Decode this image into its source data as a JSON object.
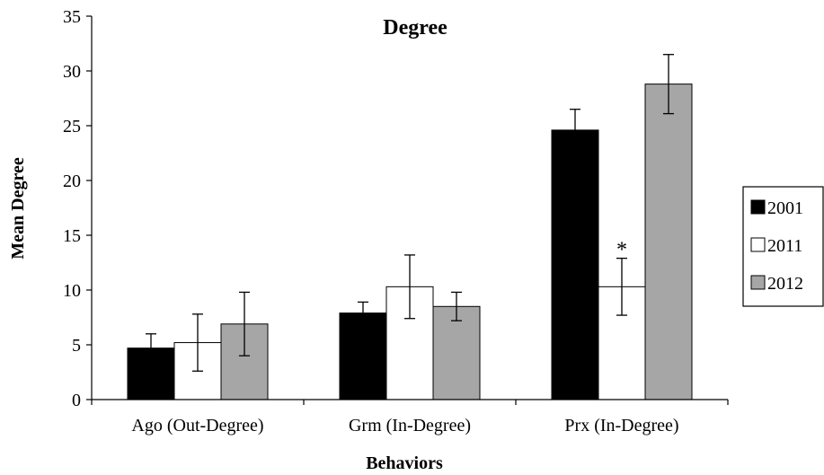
{
  "chart_data": {
    "type": "bar",
    "title": "Degree",
    "xlabel": "Behaviors",
    "ylabel": "Mean Degree",
    "ylim": [
      0,
      35
    ],
    "yticks": [
      0,
      5,
      10,
      15,
      20,
      25,
      30,
      35
    ],
    "categories": [
      "Ago (Out-Degree)",
      "Grm (In-Degree)",
      "Prx (In-Degree)"
    ],
    "series": [
      {
        "name": "2001",
        "color": "#000000",
        "values": [
          4.7,
          7.9,
          24.6
        ],
        "errors": [
          1.3,
          1.0,
          1.9
        ]
      },
      {
        "name": "2011",
        "color": "#ffffff",
        "values": [
          5.2,
          10.3,
          10.3
        ],
        "errors": [
          2.6,
          2.9,
          2.6
        ]
      },
      {
        "name": "2012",
        "color": "#a6a6a6",
        "values": [
          6.9,
          8.5,
          28.8
        ],
        "errors": [
          2.9,
          1.3,
          2.7
        ]
      }
    ],
    "legend": {
      "position": "right"
    },
    "grid": false,
    "annotations": [
      {
        "text": "*",
        "category": "Prx (In-Degree)",
        "series": "2011"
      }
    ]
  }
}
